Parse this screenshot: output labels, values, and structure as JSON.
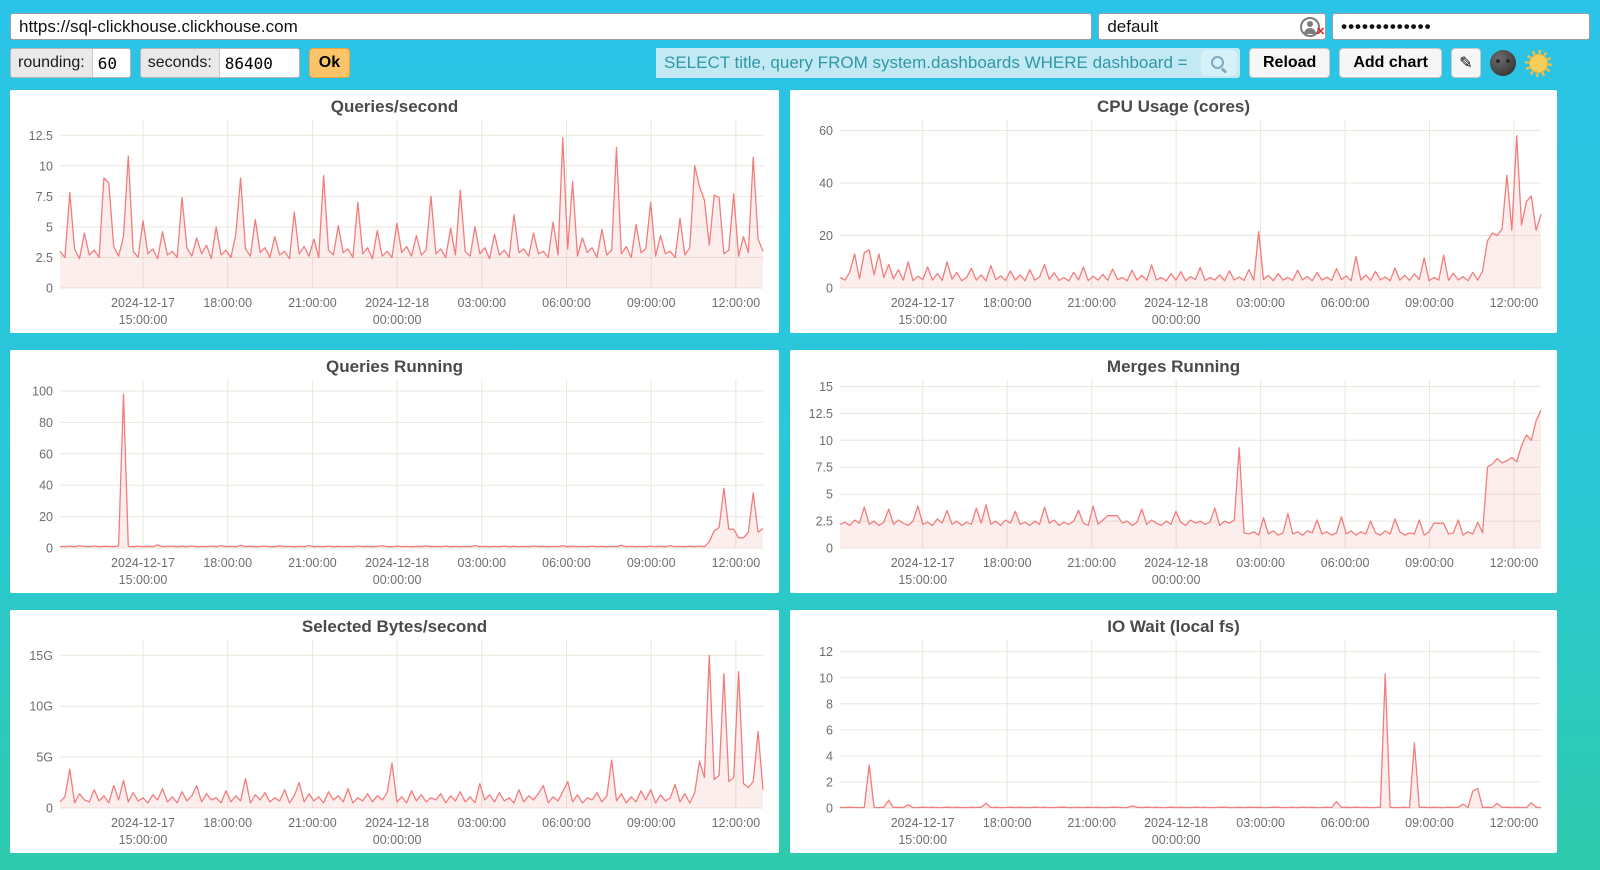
{
  "topbar": {
    "url_value": "https://sql-clickhouse.clickhouse.com",
    "user_value": "default",
    "password_masked_value": "•••••••••••••"
  },
  "controls": {
    "rounding_label": "rounding:",
    "rounding_value": "60",
    "seconds_label": "seconds:",
    "seconds_value": "86400",
    "ok_label": "Ok",
    "search_value": "SELECT title, query FROM system.dashboards WHERE dashboard = '",
    "reload_label": "Reload",
    "add_chart_label": "Add chart",
    "edit_icon": "✎"
  },
  "icons": {
    "user_field_icon": "user-with-red-x",
    "search_icon": "magnifier",
    "theme_dark_icon": "new-moon-face",
    "theme_light_icon": "sun-with-face"
  },
  "colors": {
    "background_top": "#2BC3E8",
    "background_bottom": "#2FCBAD",
    "ok_button": "#FBC469",
    "search_field_bg": "#C3EAF4",
    "search_text": "#2E98A4",
    "chart_line": "#F27D7D",
    "chart_fill": "rgba(241,126,126,0.13)",
    "grid": "#E9E7DB"
  },
  "x_axis": {
    "ticks": [
      {
        "f": 0.118,
        "lines": [
          "2024-12-17",
          "15:00:00"
        ]
      },
      {
        "f": 0.2385,
        "lines": [
          "18:00:00"
        ]
      },
      {
        "f": 0.359,
        "lines": [
          "21:00:00"
        ]
      },
      {
        "f": 0.4795,
        "lines": [
          "2024-12-18",
          "00:00:00"
        ]
      },
      {
        "f": 0.6,
        "lines": [
          "03:00:00"
        ]
      },
      {
        "f": 0.7205,
        "lines": [
          "06:00:00"
        ]
      },
      {
        "f": 0.841,
        "lines": [
          "09:00:00"
        ]
      },
      {
        "f": 0.9615,
        "lines": [
          "12:00:00"
        ]
      }
    ]
  },
  "chart_data": [
    {
      "type": "area",
      "title": "Queries/second",
      "ylim": [
        0,
        13.75
      ],
      "y_ticks": [
        {
          "v": 0,
          "label": "0"
        },
        {
          "v": 2.5,
          "label": "2.5"
        },
        {
          "v": 5,
          "label": "5"
        },
        {
          "v": 7.5,
          "label": "7.5"
        },
        {
          "v": 10,
          "label": "10"
        },
        {
          "v": 12.5,
          "label": "12.5"
        }
      ],
      "values": [
        3.0,
        2.5,
        7.8,
        3.2,
        2.4,
        4.5,
        2.7,
        3.1,
        2.5,
        9.0,
        8.6,
        3.4,
        2.6,
        4.2,
        10.8,
        3.0,
        2.5,
        5.5,
        2.8,
        3.2,
        2.4,
        4.6,
        2.7,
        3.0,
        2.5,
        7.4,
        3.3,
        2.6,
        4.1,
        2.8,
        3.5,
        2.4,
        5.0,
        2.7,
        3.1,
        2.5,
        4.4,
        9.0,
        3.2,
        2.6,
        5.6,
        2.9,
        3.3,
        2.5,
        4.2,
        2.7,
        3.0,
        2.4,
        6.2,
        2.8,
        3.4,
        2.6,
        4.0,
        2.5,
        9.2,
        3.1,
        2.7,
        5.1,
        2.9,
        3.2,
        2.5,
        7.0,
        2.8,
        3.3,
        2.4,
        4.7,
        2.6,
        3.0,
        2.5,
        5.3,
        2.9,
        3.4,
        2.6,
        4.3,
        2.7,
        3.1,
        7.5,
        2.8,
        3.2,
        2.5,
        4.9,
        2.7,
        8.0,
        3.0,
        2.6,
        5.0,
        2.8,
        3.3,
        2.4,
        4.4,
        2.7,
        3.1,
        2.5,
        6.0,
        2.9,
        3.2,
        2.6,
        4.5,
        2.8,
        3.0,
        2.5,
        5.4,
        2.7,
        12.3,
        3.2,
        8.7,
        2.6,
        4.1,
        2.9,
        3.3,
        2.5,
        4.8,
        2.7,
        3.1,
        11.5,
        2.8,
        3.4,
        2.5,
        5.2,
        2.9,
        3.2,
        7.0,
        2.6,
        4.3,
        2.8,
        3.0,
        2.5,
        5.7,
        2.7,
        3.3,
        10.0,
        8.3,
        7.2,
        3.5,
        7.6,
        7.4,
        2.8,
        3.1,
        7.7,
        2.6,
        4.2,
        2.9,
        10.7,
        4.0,
        3.0
      ]
    },
    {
      "type": "area",
      "title": "CPU Usage (cores)",
      "ylim": [
        0,
        64
      ],
      "y_ticks": [
        {
          "v": 0,
          "label": "0"
        },
        {
          "v": 20,
          "label": "20"
        },
        {
          "v": 40,
          "label": "40"
        },
        {
          "v": 60,
          "label": "60"
        }
      ],
      "values": [
        4.0,
        3.0,
        6.0,
        13.0,
        3.5,
        13.5,
        14.5,
        5.0,
        13.0,
        4.0,
        9.0,
        3.5,
        7.0,
        3.0,
        10.0,
        2.8,
        4.5,
        3.2,
        8.0,
        3.0,
        5.5,
        2.9,
        10.0,
        3.4,
        6.0,
        2.8,
        4.0,
        7.5,
        3.0,
        5.0,
        2.7,
        8.5,
        3.2,
        4.6,
        2.9,
        6.5,
        3.1,
        5.0,
        2.8,
        7.0,
        3.0,
        4.2,
        9.0,
        3.3,
        5.8,
        2.9,
        4.0,
        2.7,
        6.0,
        3.1,
        8.0,
        2.8,
        4.5,
        3.0,
        5.2,
        2.9,
        7.2,
        3.2,
        4.0,
        2.8,
        6.8,
        3.0,
        4.8,
        2.9,
        8.8,
        3.1,
        4.0,
        2.7,
        5.5,
        3.0,
        6.2,
        2.8,
        4.3,
        3.2,
        7.8,
        2.9,
        4.0,
        3.0,
        5.0,
        2.8,
        6.5,
        3.1,
        4.2,
        2.9,
        7.0,
        3.0,
        21.5,
        3.2,
        4.8,
        2.8,
        5.5,
        3.0,
        4.0,
        2.9,
        6.8,
        3.1,
        4.4,
        2.8,
        5.9,
        3.0,
        4.1,
        2.9,
        7.4,
        3.2,
        4.6,
        2.8,
        12.0,
        3.0,
        5.0,
        2.9,
        6.3,
        3.1,
        4.2,
        2.8,
        7.6,
        3.0,
        4.8,
        2.9,
        5.4,
        3.2,
        11.5,
        2.8,
        4.0,
        3.0,
        12.5,
        2.9,
        5.6,
        3.1,
        4.3,
        2.8,
        6.0,
        3.0,
        6.5,
        18.0,
        21.0,
        20.0,
        22.5,
        43.0,
        22.0,
        58.0,
        24.0,
        33.0,
        35.0,
        22.0,
        28.0
      ]
    },
    {
      "type": "area",
      "title": "Queries Running",
      "ylim": [
        0,
        107
      ],
      "y_ticks": [
        {
          "v": 0,
          "label": "0"
        },
        {
          "v": 20,
          "label": "20"
        },
        {
          "v": 40,
          "label": "40"
        },
        {
          "v": 60,
          "label": "60"
        },
        {
          "v": 80,
          "label": "80"
        },
        {
          "v": 100,
          "label": "100"
        }
      ],
      "values": [
        1.0,
        0.9,
        1.2,
        0.8,
        1.5,
        1.0,
        0.9,
        1.3,
        0.8,
        1.1,
        1.0,
        0.9,
        1.4,
        98.0,
        1.0,
        0.8,
        1.2,
        0.9,
        1.1,
        0.8,
        2.0,
        0.9,
        1.0,
        1.2,
        0.8,
        1.1,
        0.9,
        1.3,
        0.8,
        1.0,
        0.9,
        1.2,
        0.8,
        1.5,
        0.9,
        1.0,
        0.8,
        1.8,
        0.9,
        1.1,
        0.8,
        1.0,
        1.2,
        0.9,
        0.8,
        1.4,
        0.9,
        1.0,
        0.8,
        1.1,
        0.9,
        1.6,
        0.8,
        1.0,
        0.9,
        1.2,
        0.8,
        1.1,
        0.9,
        1.0,
        0.8,
        1.3,
        0.9,
        1.1,
        0.8,
        1.0,
        1.5,
        0.9,
        0.8,
        1.2,
        0.9,
        1.0,
        0.8,
        1.1,
        0.9,
        1.4,
        0.8,
        1.0,
        0.9,
        1.2,
        0.8,
        1.1,
        0.9,
        1.0,
        0.8,
        1.6,
        0.9,
        1.1,
        0.8,
        1.0,
        0.9,
        1.2,
        0.8,
        1.1,
        0.9,
        1.0,
        0.8,
        1.3,
        0.9,
        1.1,
        0.8,
        1.0,
        0.9,
        1.5,
        0.8,
        1.1,
        0.9,
        1.0,
        0.8,
        1.2,
        0.9,
        1.1,
        0.8,
        1.0,
        0.9,
        1.8,
        0.8,
        1.1,
        0.9,
        1.0,
        0.8,
        1.2,
        0.9,
        1.1,
        0.8,
        1.5,
        0.9,
        1.0,
        0.8,
        1.1,
        0.9,
        1.2,
        0.8,
        4.0,
        11.0,
        13.0,
        38.0,
        12.0,
        12.0,
        6.5,
        6.5,
        10.0,
        35.0,
        10.0,
        12.5
      ]
    },
    {
      "type": "area",
      "title": "Merges Running",
      "ylim": [
        0,
        15.6
      ],
      "y_ticks": [
        {
          "v": 0,
          "label": "0"
        },
        {
          "v": 2.5,
          "label": "2.5"
        },
        {
          "v": 5,
          "label": "5"
        },
        {
          "v": 7.5,
          "label": "7.5"
        },
        {
          "v": 10,
          "label": "10"
        },
        {
          "v": 12.5,
          "label": "12.5"
        },
        {
          "v": 15,
          "label": "15"
        }
      ],
      "values": [
        2.2,
        2.4,
        2.1,
        2.6,
        2.3,
        3.8,
        2.2,
        2.5,
        2.1,
        2.4,
        3.6,
        2.2,
        2.6,
        2.3,
        2.1,
        2.5,
        3.9,
        2.2,
        2.4,
        2.1,
        2.7,
        2.3,
        3.5,
        2.2,
        2.5,
        2.1,
        2.4,
        2.2,
        3.7,
        2.3,
        4.0,
        2.2,
        2.5,
        2.1,
        2.6,
        2.3,
        3.4,
        2.2,
        2.4,
        2.1,
        2.5,
        2.2,
        3.8,
        2.3,
        2.6,
        2.1,
        2.4,
        2.2,
        2.5,
        3.5,
        2.3,
        2.1,
        3.9,
        2.2,
        2.6,
        3.0,
        3.0,
        3.0,
        2.3,
        2.5,
        2.1,
        2.4,
        3.6,
        2.2,
        2.6,
        2.3,
        2.1,
        2.5,
        2.2,
        3.4,
        2.4,
        2.1,
        2.6,
        2.3,
        2.5,
        2.2,
        2.4,
        3.7,
        2.1,
        2.5,
        2.3,
        2.6,
        9.3,
        1.4,
        1.3,
        1.5,
        1.2,
        2.8,
        1.3,
        1.6,
        1.2,
        1.4,
        3.2,
        1.3,
        1.5,
        1.2,
        1.6,
        1.4,
        2.6,
        1.3,
        1.5,
        1.2,
        1.4,
        2.9,
        1.3,
        1.6,
        1.2,
        1.5,
        1.3,
        2.5,
        1.4,
        1.2,
        1.6,
        1.3,
        2.7,
        1.5,
        1.2,
        1.4,
        1.3,
        2.6,
        1.2,
        1.5,
        2.3,
        2.3,
        2.3,
        1.3,
        1.4,
        2.6,
        1.2,
        1.5,
        1.3,
        2.4,
        1.4,
        7.5,
        7.8,
        8.3,
        7.9,
        8.1,
        8.4,
        8.0,
        9.5,
        10.5,
        10.0,
        11.8,
        12.8
      ]
    },
    {
      "type": "area",
      "title": "Selected Bytes/second",
      "ylim": [
        0,
        16.5
      ],
      "y_ticks": [
        {
          "v": 0,
          "label": "0"
        },
        {
          "v": 5,
          "label": "5G"
        },
        {
          "v": 10,
          "label": "10G"
        },
        {
          "v": 15,
          "label": "15G"
        }
      ],
      "values": [
        0.6,
        1.1,
        3.8,
        0.5,
        1.4,
        0.8,
        0.6,
        1.8,
        0.7,
        1.2,
        0.5,
        2.2,
        0.8,
        2.7,
        0.6,
        1.5,
        0.7,
        1.0,
        0.5,
        1.3,
        0.8,
        1.9,
        0.6,
        1.1,
        0.5,
        1.6,
        0.7,
        1.2,
        2.2,
        0.6,
        1.4,
        0.8,
        1.0,
        0.5,
        1.7,
        0.6,
        1.2,
        0.7,
        2.9,
        0.5,
        1.3,
        0.8,
        1.5,
        0.6,
        1.0,
        0.7,
        1.8,
        0.5,
        1.2,
        2.5,
        0.6,
        1.4,
        0.7,
        1.1,
        0.5,
        1.6,
        0.8,
        1.2,
        0.6,
        1.9,
        0.5,
        1.0,
        0.7,
        1.4,
        0.6,
        1.2,
        0.8,
        1.5,
        4.4,
        0.6,
        1.1,
        0.5,
        1.7,
        0.7,
        1.3,
        0.6,
        1.0,
        0.8,
        1.4,
        0.5,
        1.2,
        0.7,
        1.6,
        0.6,
        1.1,
        0.5,
        2.4,
        0.8,
        1.3,
        0.6,
        1.5,
        0.7,
        1.0,
        0.5,
        1.8,
        0.6,
        1.2,
        0.8,
        1.4,
        2.2,
        0.5,
        1.1,
        0.7,
        1.6,
        2.6,
        0.6,
        1.3,
        0.5,
        1.0,
        0.8,
        1.5,
        0.6,
        1.2,
        4.7,
        0.7,
        1.4,
        0.5,
        1.1,
        0.6,
        1.7,
        0.8,
        1.8,
        0.5,
        1.3,
        0.7,
        1.0,
        2.3,
        0.6,
        1.4,
        0.5,
        1.5,
        4.6,
        3.0,
        15.0,
        2.8,
        3.2,
        13.2,
        2.6,
        3.0,
        13.4,
        2.4,
        2.0,
        2.6,
        7.5,
        1.8
      ]
    },
    {
      "type": "area",
      "title": "IO Wait (local fs)",
      "ylim": [
        0,
        12.9
      ],
      "y_ticks": [
        {
          "v": 0,
          "label": "0"
        },
        {
          "v": 2,
          "label": "2"
        },
        {
          "v": 4,
          "label": "4"
        },
        {
          "v": 6,
          "label": "6"
        },
        {
          "v": 8,
          "label": "8"
        },
        {
          "v": 10,
          "label": "10"
        },
        {
          "v": 12,
          "label": "12"
        }
      ],
      "values": [
        0.05,
        0.03,
        0.06,
        0.04,
        0.03,
        0.05,
        3.3,
        0.04,
        0.03,
        0.05,
        0.6,
        0.04,
        0.05,
        0.03,
        0.25,
        0.04,
        0.03,
        0.06,
        0.04,
        0.05,
        0.03,
        0.04,
        0.06,
        0.03,
        0.05,
        0.04,
        0.03,
        0.05,
        0.04,
        0.06,
        0.35,
        0.04,
        0.05,
        0.03,
        0.04,
        0.06,
        0.03,
        0.05,
        0.04,
        0.03,
        0.06,
        0.04,
        0.05,
        0.03,
        0.04,
        0.05,
        0.06,
        0.03,
        0.04,
        0.05,
        0.03,
        0.06,
        0.04,
        0.05,
        0.03,
        0.04,
        0.06,
        0.05,
        0.03,
        0.04,
        0.15,
        0.05,
        0.03,
        0.06,
        0.04,
        0.05,
        0.03,
        0.04,
        0.06,
        0.03,
        0.05,
        0.04,
        0.03,
        0.06,
        0.04,
        0.05,
        0.03,
        0.04,
        0.05,
        0.06,
        0.03,
        0.04,
        0.05,
        0.03,
        0.06,
        0.04,
        0.05,
        0.03,
        0.04,
        0.06,
        0.05,
        0.03,
        0.04,
        0.05,
        0.03,
        0.06,
        0.04,
        0.05,
        0.03,
        0.04,
        0.06,
        0.03,
        0.5,
        0.04,
        0.05,
        0.03,
        0.06,
        0.04,
        0.05,
        0.03,
        0.04,
        0.06,
        10.3,
        0.05,
        0.03,
        0.04,
        0.05,
        0.03,
        5.0,
        0.04,
        0.06,
        0.03,
        0.05,
        0.04,
        0.03,
        0.06,
        0.04,
        0.05,
        0.3,
        0.03,
        1.3,
        1.5,
        0.04,
        0.05,
        0.03,
        0.35,
        0.04,
        0.06,
        0.03,
        0.05,
        0.04,
        0.03,
        0.4,
        0.05,
        0.03
      ]
    }
  ]
}
